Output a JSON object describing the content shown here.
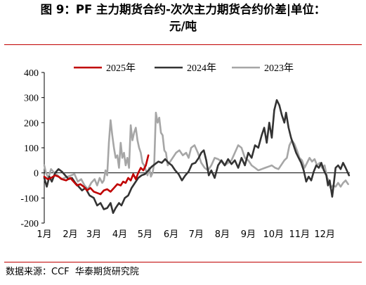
{
  "title": {
    "line1": "图 9：PF 主力期货合约-次次主力期货合约价差|单位：",
    "line2": "元/吨"
  },
  "source": "数据来源：CCF  华泰期货研究院",
  "chart_data": {
    "type": "line",
    "x_unit": "day_of_year",
    "xlim": [
      1,
      365
    ],
    "ylim": [
      -200,
      400
    ],
    "y_ticks": [
      "400",
      "300",
      "200",
      "100",
      "0",
      "-100",
      "-200"
    ],
    "x_tick_labels": [
      "1月",
      "2月",
      "3月",
      "4月",
      "5月",
      "6月",
      "7月",
      "8月",
      "9月",
      "10月",
      "11月",
      "12月"
    ],
    "grid": false,
    "legend_position": "top",
    "series": [
      {
        "name": "2025年",
        "color": "#c00000",
        "points": [
          [
            1,
            -15
          ],
          [
            5,
            -25
          ],
          [
            9,
            -20
          ],
          [
            14,
            -10
          ],
          [
            18,
            -15
          ],
          [
            22,
            -25
          ],
          [
            27,
            -30
          ],
          [
            32,
            -20
          ],
          [
            36,
            -35
          ],
          [
            40,
            -50
          ],
          [
            44,
            -45
          ],
          [
            48,
            -55
          ],
          [
            52,
            -70
          ],
          [
            56,
            -60
          ],
          [
            60,
            -75
          ],
          [
            64,
            -80
          ],
          [
            68,
            -85
          ],
          [
            72,
            -70
          ],
          [
            76,
            -65
          ],
          [
            80,
            -75
          ],
          [
            84,
            -60
          ],
          [
            88,
            -45
          ],
          [
            92,
            -50
          ],
          [
            95,
            -35
          ],
          [
            98,
            -40
          ],
          [
            101,
            -20
          ],
          [
            104,
            -30
          ],
          [
            107,
            -5
          ],
          [
            110,
            -25
          ],
          [
            113,
            0
          ],
          [
            116,
            20
          ],
          [
            119,
            10
          ],
          [
            122,
            30
          ],
          [
            125,
            70
          ]
        ]
      },
      {
        "name": "2024年",
        "color": "#333333",
        "points": [
          [
            1,
            -20
          ],
          [
            4,
            -55
          ],
          [
            7,
            -15
          ],
          [
            10,
            -35
          ],
          [
            14,
            0
          ],
          [
            18,
            15
          ],
          [
            22,
            5
          ],
          [
            26,
            -10
          ],
          [
            30,
            -25
          ],
          [
            34,
            -20
          ],
          [
            38,
            -40
          ],
          [
            42,
            -55
          ],
          [
            46,
            -70
          ],
          [
            50,
            -60
          ],
          [
            55,
            -90
          ],
          [
            60,
            -100
          ],
          [
            64,
            -130
          ],
          [
            68,
            -120
          ],
          [
            72,
            -145
          ],
          [
            76,
            -140
          ],
          [
            80,
            -120
          ],
          [
            83,
            -160
          ],
          [
            86,
            -140
          ],
          [
            90,
            -120
          ],
          [
            93,
            -130
          ],
          [
            97,
            -100
          ],
          [
            101,
            -90
          ],
          [
            105,
            -60
          ],
          [
            109,
            -40
          ],
          [
            113,
            -20
          ],
          [
            117,
            -10
          ],
          [
            121,
            -5
          ],
          [
            125,
            10
          ],
          [
            129,
            25
          ],
          [
            133,
            35
          ],
          [
            137,
            45
          ],
          [
            141,
            40
          ],
          [
            145,
            55
          ],
          [
            149,
            40
          ],
          [
            153,
            30
          ],
          [
            157,
            10
          ],
          [
            161,
            -5
          ],
          [
            165,
            -30
          ],
          [
            169,
            -10
          ],
          [
            173,
            5
          ],
          [
            177,
            35
          ],
          [
            181,
            40
          ],
          [
            185,
            60
          ],
          [
            188,
            80
          ],
          [
            191,
            90
          ],
          [
            194,
            50
          ],
          [
            197,
            -10
          ],
          [
            200,
            10
          ],
          [
            204,
            -20
          ],
          [
            208,
            30
          ],
          [
            212,
            50
          ],
          [
            216,
            30
          ],
          [
            220,
            55
          ],
          [
            224,
            35
          ],
          [
            228,
            50
          ],
          [
            232,
            20
          ],
          [
            236,
            60
          ],
          [
            240,
            30
          ],
          [
            244,
            80
          ],
          [
            248,
            60
          ],
          [
            252,
            110
          ],
          [
            256,
            100
          ],
          [
            260,
            150
          ],
          [
            263,
            180
          ],
          [
            266,
            120
          ],
          [
            269,
            200
          ],
          [
            272,
            140
          ],
          [
            275,
            250
          ],
          [
            278,
            290
          ],
          [
            281,
            270
          ],
          [
            284,
            230
          ],
          [
            287,
            200
          ],
          [
            289,
            240
          ],
          [
            292,
            180
          ],
          [
            295,
            140
          ],
          [
            298,
            110
          ],
          [
            301,
            80
          ],
          [
            304,
            60
          ],
          [
            307,
            40
          ],
          [
            310,
            10
          ],
          [
            313,
            -35
          ],
          [
            316,
            -15
          ],
          [
            319,
            -30
          ],
          [
            322,
            5
          ],
          [
            325,
            30
          ],
          [
            328,
            20
          ],
          [
            331,
            40
          ],
          [
            334,
            10
          ],
          [
            337,
            -10
          ],
          [
            339,
            -50
          ],
          [
            341,
            -30
          ],
          [
            344,
            -95
          ],
          [
            346,
            -40
          ],
          [
            348,
            20
          ],
          [
            351,
            30
          ],
          [
            354,
            15
          ],
          [
            357,
            40
          ],
          [
            360,
            20
          ],
          [
            364,
            -10
          ]
        ]
      },
      {
        "name": "2023年",
        "color": "#a6a6a6",
        "points": [
          [
            1,
            30
          ],
          [
            3,
            0
          ],
          [
            6,
            -20
          ],
          [
            9,
            15
          ],
          [
            13,
            0
          ],
          [
            17,
            -10
          ],
          [
            21,
            -25
          ],
          [
            25,
            -20
          ],
          [
            29,
            -15
          ],
          [
            33,
            -10
          ],
          [
            37,
            -5
          ],
          [
            41,
            -35
          ],
          [
            45,
            -25
          ],
          [
            49,
            -50
          ],
          [
            53,
            -65
          ],
          [
            57,
            -40
          ],
          [
            61,
            -25
          ],
          [
            64,
            -50
          ],
          [
            67,
            -20
          ],
          [
            70,
            -40
          ],
          [
            72,
            -30
          ],
          [
            74,
            10
          ],
          [
            76,
            -10
          ],
          [
            78,
            120
          ],
          [
            80,
            210
          ],
          [
            82,
            150
          ],
          [
            84,
            100
          ],
          [
            86,
            60
          ],
          [
            88,
            70
          ],
          [
            90,
            20
          ],
          [
            92,
            120
          ],
          [
            94,
            60
          ],
          [
            96,
            80
          ],
          [
            98,
            30
          ],
          [
            100,
            60
          ],
          [
            102,
            20
          ],
          [
            104,
            190
          ],
          [
            106,
            130
          ],
          [
            108,
            160
          ],
          [
            110,
            180
          ],
          [
            112,
            130
          ],
          [
            114,
            100
          ],
          [
            116,
            80
          ],
          [
            118,
            40
          ],
          [
            120,
            30
          ],
          [
            122,
            10
          ],
          [
            124,
            -10
          ],
          [
            126,
            20
          ],
          [
            128,
            -15
          ],
          [
            130,
            0
          ],
          [
            132,
            40
          ],
          [
            134,
            240
          ],
          [
            136,
            200
          ],
          [
            138,
            220
          ],
          [
            140,
            160
          ],
          [
            142,
            150
          ],
          [
            144,
            90
          ],
          [
            146,
            80
          ],
          [
            148,
            30
          ],
          [
            150,
            40
          ],
          [
            154,
            60
          ],
          [
            158,
            80
          ],
          [
            162,
            90
          ],
          [
            166,
            70
          ],
          [
            170,
            80
          ],
          [
            173,
            60
          ],
          [
            176,
            100
          ],
          [
            180,
            110
          ],
          [
            184,
            80
          ],
          [
            188,
            40
          ],
          [
            192,
            20
          ],
          [
            196,
            10
          ],
          [
            200,
            30
          ],
          [
            204,
            60
          ],
          [
            208,
            55
          ],
          [
            212,
            45
          ],
          [
            216,
            30
          ],
          [
            220,
            40
          ],
          [
            224,
            50
          ],
          [
            228,
            80
          ],
          [
            232,
            110
          ],
          [
            236,
            100
          ],
          [
            240,
            60
          ],
          [
            244,
            50
          ],
          [
            248,
            30
          ],
          [
            252,
            20
          ],
          [
            256,
            10
          ],
          [
            260,
            15
          ],
          [
            264,
            20
          ],
          [
            268,
            25
          ],
          [
            272,
            30
          ],
          [
            276,
            20
          ],
          [
            280,
            15
          ],
          [
            284,
            35
          ],
          [
            287,
            50
          ],
          [
            290,
            60
          ],
          [
            293,
            110
          ],
          [
            296,
            130
          ],
          [
            299,
            115
          ],
          [
            302,
            90
          ],
          [
            305,
            60
          ],
          [
            308,
            50
          ],
          [
            311,
            20
          ],
          [
            314,
            40
          ],
          [
            317,
            60
          ],
          [
            320,
            45
          ],
          [
            323,
            55
          ],
          [
            326,
            30
          ],
          [
            329,
            40
          ],
          [
            332,
            20
          ],
          [
            335,
            30
          ],
          [
            338,
            -20
          ],
          [
            340,
            -30
          ],
          [
            342,
            -60
          ],
          [
            345,
            -50
          ],
          [
            348,
            -55
          ],
          [
            351,
            -40
          ],
          [
            354,
            -55
          ],
          [
            357,
            -40
          ],
          [
            360,
            -30
          ],
          [
            363,
            -45
          ]
        ]
      }
    ]
  }
}
